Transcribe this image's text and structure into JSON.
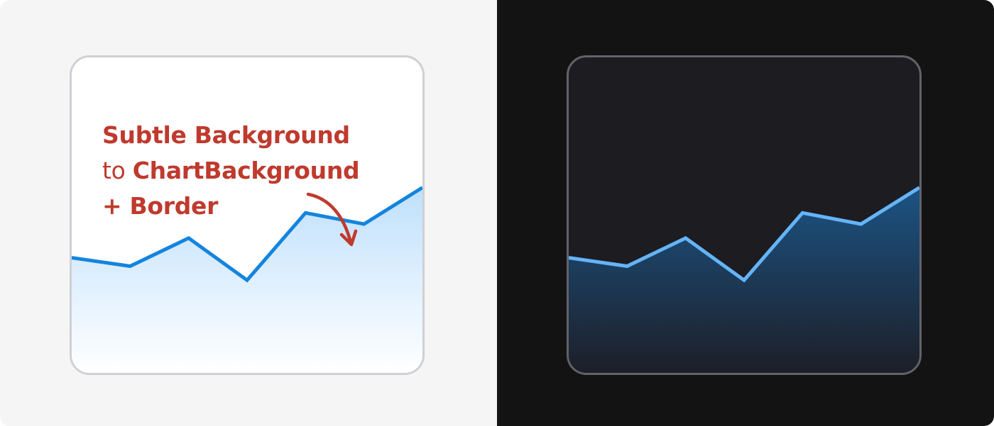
{
  "annotation": {
    "line1": "Subtle Background",
    "line2_prefix": "to ",
    "line2_bold": "ChartBackground",
    "line3": "+ Border",
    "color": "#bf3a2d"
  },
  "themes": {
    "light": {
      "page_bg": "#f5f5f6",
      "card_bg": "#ffffff",
      "card_border": "#cfd0d5",
      "line_color": "#1484de",
      "fill_top": "#bfe0fc",
      "fill_bottom": "#ffffff"
    },
    "dark": {
      "page_bg": "#131314",
      "card_bg": "#1c1c21",
      "card_border": "#62626a",
      "line_color": "#64b4f8",
      "fill_top": "#1b5384",
      "fill_bottom": "#1d1f27"
    }
  },
  "chart_data": [
    {
      "type": "area",
      "theme": "light",
      "x": [
        0,
        1,
        2,
        3,
        4,
        5,
        6
      ],
      "y": [
        41,
        38,
        48,
        33,
        57,
        53,
        66
      ],
      "ylim": [
        0,
        100
      ],
      "grid": false,
      "legend": "none",
      "title": "",
      "xlabel": "",
      "ylabel": ""
    },
    {
      "type": "area",
      "theme": "dark",
      "x": [
        0,
        1,
        2,
        3,
        4,
        5,
        6
      ],
      "y": [
        41,
        38,
        48,
        33,
        57,
        53,
        66
      ],
      "ylim": [
        0,
        100
      ],
      "grid": false,
      "legend": "none",
      "title": "",
      "xlabel": "",
      "ylabel": ""
    }
  ]
}
